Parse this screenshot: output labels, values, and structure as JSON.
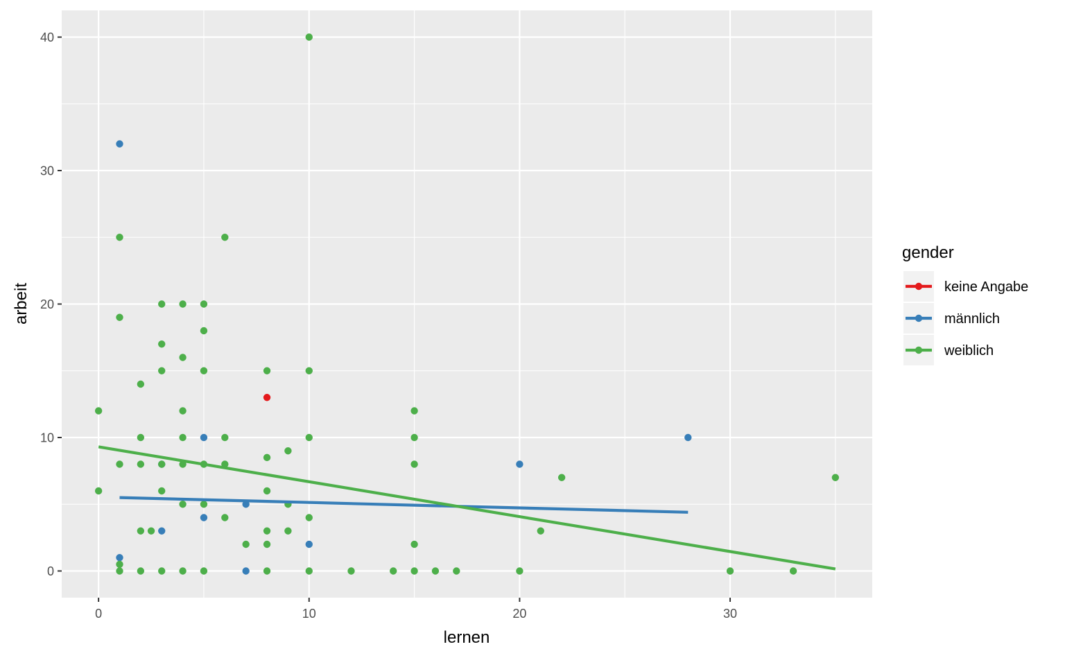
{
  "chart_data": {
    "type": "scatter",
    "xlabel": "lernen",
    "ylabel": "arbeit",
    "xlim": [
      -1.75,
      36.75
    ],
    "ylim": [
      -2,
      42
    ],
    "x_ticks": [
      0,
      10,
      20,
      30
    ],
    "y_ticks": [
      0,
      10,
      20,
      30,
      40
    ],
    "grid": true,
    "legend": {
      "title": "gender",
      "position": "right",
      "entries": [
        "keine Angabe",
        "männlich",
        "weiblich"
      ]
    },
    "series": [
      {
        "name": "keine Angabe",
        "color": "#e41a1c",
        "points": [
          [
            8,
            13
          ]
        ]
      },
      {
        "name": "männlich",
        "color": "#377eb8",
        "points": [
          [
            1,
            32
          ],
          [
            1,
            1
          ],
          [
            3,
            8
          ],
          [
            3,
            3
          ],
          [
            5,
            10
          ],
          [
            5,
            4
          ],
          [
            7,
            5
          ],
          [
            7,
            0
          ],
          [
            10,
            2
          ],
          [
            20,
            8
          ],
          [
            28,
            10
          ]
        ],
        "trend": [
          [
            1,
            5.5
          ],
          [
            28,
            4.4
          ]
        ]
      },
      {
        "name": "weiblich",
        "color": "#4daf4a",
        "points": [
          [
            0,
            12
          ],
          [
            0,
            6
          ],
          [
            1,
            25
          ],
          [
            1,
            19
          ],
          [
            1,
            8
          ],
          [
            1,
            0.5
          ],
          [
            1,
            0
          ],
          [
            2,
            14
          ],
          [
            2,
            10
          ],
          [
            2,
            8
          ],
          [
            2,
            3
          ],
          [
            2,
            0
          ],
          [
            2.5,
            3
          ],
          [
            3,
            20
          ],
          [
            3,
            17
          ],
          [
            3,
            15
          ],
          [
            3,
            8
          ],
          [
            3,
            6
          ],
          [
            3,
            0
          ],
          [
            4,
            20
          ],
          [
            4,
            16
          ],
          [
            4,
            12
          ],
          [
            4,
            10
          ],
          [
            4,
            8
          ],
          [
            4,
            5
          ],
          [
            4,
            0
          ],
          [
            5,
            20
          ],
          [
            5,
            18
          ],
          [
            5,
            15
          ],
          [
            5,
            8
          ],
          [
            5,
            5
          ],
          [
            5,
            0
          ],
          [
            6,
            25
          ],
          [
            6,
            10
          ],
          [
            6,
            8
          ],
          [
            6,
            4
          ],
          [
            7,
            2
          ],
          [
            8,
            15
          ],
          [
            8,
            8.5
          ],
          [
            8,
            6
          ],
          [
            8,
            3
          ],
          [
            8,
            2
          ],
          [
            8,
            0
          ],
          [
            9,
            9
          ],
          [
            9,
            5
          ],
          [
            9,
            3
          ],
          [
            10,
            40
          ],
          [
            10,
            15
          ],
          [
            10,
            10
          ],
          [
            10,
            4
          ],
          [
            10,
            0
          ],
          [
            12,
            0
          ],
          [
            14,
            0
          ],
          [
            15,
            12
          ],
          [
            15,
            10
          ],
          [
            15,
            8
          ],
          [
            15,
            2
          ],
          [
            15,
            0
          ],
          [
            16,
            0
          ],
          [
            17,
            0
          ],
          [
            20,
            0
          ],
          [
            21,
            3
          ],
          [
            22,
            7
          ],
          [
            30,
            0
          ],
          [
            33,
            0
          ],
          [
            35,
            7
          ]
        ],
        "trend": [
          [
            0,
            9.3
          ],
          [
            35,
            0.15
          ]
        ]
      }
    ]
  }
}
